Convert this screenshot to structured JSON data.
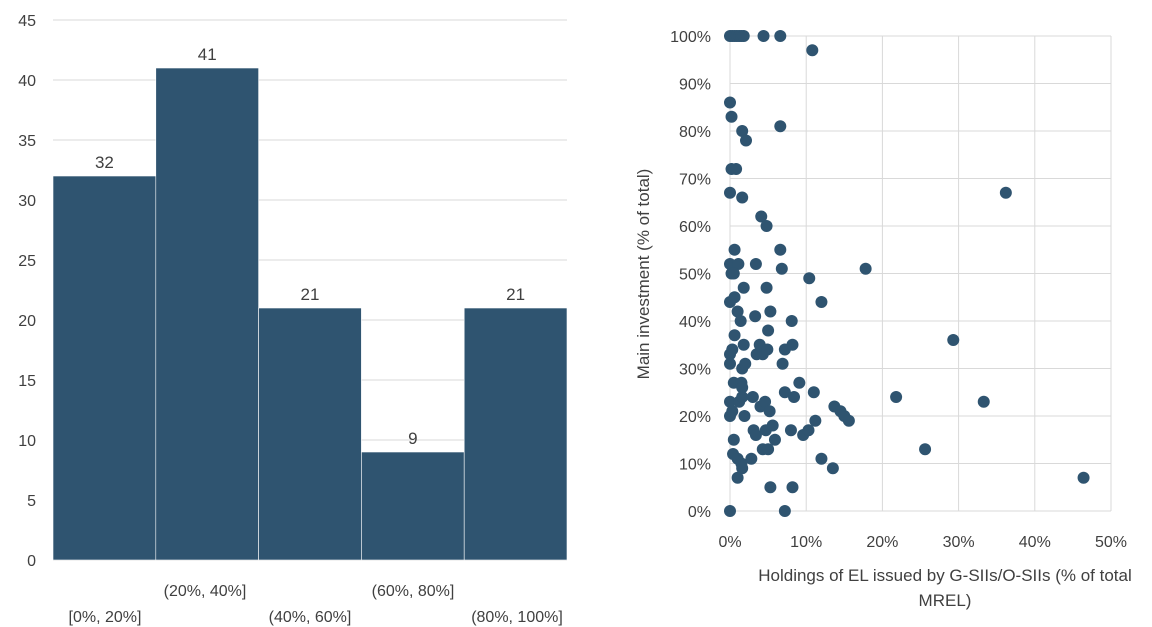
{
  "chart_data": [
    {
      "type": "bar",
      "categories": [
        "[0%, 20%]",
        "(20%, 40%]",
        "(40%, 60%]",
        "(60%, 80%]",
        "(80%, 100%]"
      ],
      "values": [
        32,
        41,
        21,
        9,
        21
      ],
      "data_labels": [
        "32",
        "41",
        "21",
        "9",
        "21"
      ],
      "yticks": [
        "0",
        "5",
        "10",
        "15",
        "20",
        "25",
        "30",
        "35",
        "40",
        "45"
      ],
      "ylim": [
        0,
        45
      ],
      "bar_color": "#2f5470",
      "grid": true
    },
    {
      "type": "scatter",
      "xlabel": "Holdings of EL issued by G-SIIs/O-SIIs (% of total MREL)",
      "ylabel": "Main investment (% of total)",
      "xlim": [
        0,
        50
      ],
      "ylim": [
        0,
        100
      ],
      "xticks": [
        "0%",
        "10%",
        "20%",
        "30%",
        "40%",
        "50%"
      ],
      "yticks": [
        "0%",
        "10%",
        "20%",
        "30%",
        "40%",
        "50%",
        "60%",
        "70%",
        "80%",
        "90%",
        "100%"
      ],
      "point_color": "#2f5470",
      "grid": true,
      "points": [
        [
          0.0,
          100
        ],
        [
          0.3,
          100
        ],
        [
          0.6,
          100
        ],
        [
          0.9,
          100
        ],
        [
          1.2,
          100
        ],
        [
          1.5,
          100
        ],
        [
          1.8,
          100
        ],
        [
          4.4,
          100
        ],
        [
          6.6,
          100
        ],
        [
          10.8,
          97
        ],
        [
          0.0,
          86
        ],
        [
          0.2,
          83
        ],
        [
          1.6,
          80
        ],
        [
          2.1,
          78
        ],
        [
          6.6,
          81
        ],
        [
          0.2,
          72
        ],
        [
          0.8,
          72
        ],
        [
          0.0,
          67
        ],
        [
          1.6,
          66
        ],
        [
          36.2,
          67
        ],
        [
          4.1,
          62
        ],
        [
          4.8,
          60
        ],
        [
          0.6,
          55
        ],
        [
          6.6,
          55
        ],
        [
          0.0,
          52
        ],
        [
          1.1,
          52
        ],
        [
          3.4,
          52
        ],
        [
          0.2,
          50
        ],
        [
          0.5,
          50
        ],
        [
          6.8,
          51
        ],
        [
          10.4,
          49
        ],
        [
          17.8,
          51
        ],
        [
          0.0,
          44
        ],
        [
          0.6,
          45
        ],
        [
          1.8,
          47
        ],
        [
          4.8,
          47
        ],
        [
          12.0,
          44
        ],
        [
          1.0,
          42
        ],
        [
          1.4,
          40
        ],
        [
          3.3,
          41
        ],
        [
          5.3,
          42
        ],
        [
          5.0,
          38
        ],
        [
          8.1,
          40
        ],
        [
          0.6,
          37
        ],
        [
          0.3,
          34
        ],
        [
          0.0,
          33
        ],
        [
          1.8,
          35
        ],
        [
          3.5,
          33
        ],
        [
          3.9,
          35
        ],
        [
          4.3,
          33
        ],
        [
          4.9,
          34
        ],
        [
          7.2,
          34
        ],
        [
          8.2,
          35
        ],
        [
          29.3,
          36
        ],
        [
          0.0,
          31
        ],
        [
          1.6,
          30
        ],
        [
          2.0,
          31
        ],
        [
          6.9,
          31
        ],
        [
          0.5,
          27
        ],
        [
          1.5,
          27
        ],
        [
          1.6,
          26
        ],
        [
          9.1,
          27
        ],
        [
          11.0,
          25
        ],
        [
          0.0,
          23
        ],
        [
          1.2,
          23
        ],
        [
          1.6,
          24
        ],
        [
          3.0,
          24
        ],
        [
          4.0,
          22
        ],
        [
          4.6,
          23
        ],
        [
          5.2,
          21
        ],
        [
          7.2,
          25
        ],
        [
          8.4,
          24
        ],
        [
          21.8,
          24
        ],
        [
          33.3,
          23
        ],
        [
          0.0,
          20
        ],
        [
          0.3,
          21
        ],
        [
          1.9,
          20
        ],
        [
          3.1,
          17
        ],
        [
          3.4,
          16
        ],
        [
          4.7,
          17
        ],
        [
          5.6,
          18
        ],
        [
          9.6,
          16
        ],
        [
          10.3,
          17
        ],
        [
          11.2,
          19
        ],
        [
          13.7,
          22
        ],
        [
          14.5,
          21
        ],
        [
          15.0,
          20
        ],
        [
          15.6,
          19
        ],
        [
          0.5,
          15
        ],
        [
          0.4,
          12
        ],
        [
          1.0,
          11
        ],
        [
          1.5,
          10
        ],
        [
          2.8,
          11
        ],
        [
          4.3,
          13
        ],
        [
          5.0,
          13
        ],
        [
          5.9,
          15
        ],
        [
          8.0,
          17
        ],
        [
          12.0,
          11
        ],
        [
          13.5,
          9
        ],
        [
          25.6,
          13
        ],
        [
          1.6,
          9
        ],
        [
          1.0,
          7
        ],
        [
          46.4,
          7
        ],
        [
          5.3,
          5
        ],
        [
          8.2,
          5
        ],
        [
          0.0,
          0
        ],
        [
          7.2,
          0
        ]
      ]
    }
  ]
}
